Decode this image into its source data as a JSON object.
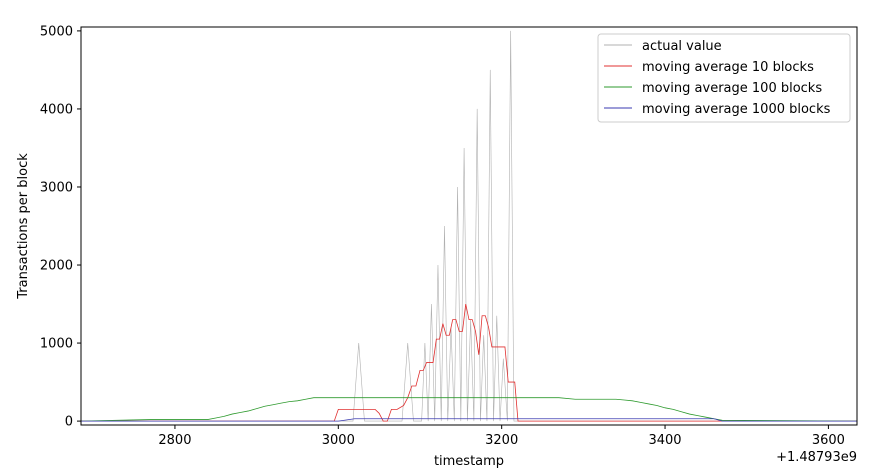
{
  "chart_data": {
    "type": "line",
    "title": "",
    "xlabel": "timestamp",
    "ylabel": "Transactions per block",
    "x_offset_label": "+1.48793e9",
    "xlim": [
      2685,
      3635
    ],
    "ylim": [
      -50,
      5050
    ],
    "x_ticks": [
      2800,
      3000,
      3200,
      3400,
      3600
    ],
    "y_ticks": [
      0,
      1000,
      2000,
      3000,
      4000,
      5000
    ],
    "grid": false,
    "legend_position": "top-right",
    "series": [
      {
        "name": "actual value",
        "color": "#b0b0b0",
        "x": [
          2685,
          3018,
          3025,
          3032,
          3078,
          3085,
          3092,
          3102,
          3106,
          3110,
          3114,
          3118,
          3122,
          3126,
          3130,
          3134,
          3138,
          3142,
          3146,
          3150,
          3154,
          3158,
          3162,
          3166,
          3170,
          3174,
          3178,
          3182,
          3186,
          3190,
          3194,
          3198,
          3202,
          3207,
          3211,
          3215,
          3219,
          3225,
          3635
        ],
        "y": [
          0,
          0,
          1000,
          0,
          0,
          1000,
          0,
          0,
          1000,
          0,
          1500,
          0,
          2000,
          0,
          2500,
          0,
          1200,
          0,
          3000,
          0,
          3500,
          0,
          1300,
          0,
          4000,
          0,
          1100,
          0,
          4500,
          0,
          1350,
          0,
          800,
          0,
          5000,
          0,
          0,
          0,
          0
        ]
      },
      {
        "name": "moving average 10 blocks",
        "color": "#e03030",
        "x": [
          2685,
          2995,
          3000,
          3045,
          3050,
          3055,
          3060,
          3065,
          3068,
          3072,
          3080,
          3085,
          3090,
          3095,
          3100,
          3104,
          3108,
          3112,
          3116,
          3120,
          3124,
          3128,
          3132,
          3136,
          3140,
          3144,
          3148,
          3152,
          3156,
          3160,
          3164,
          3168,
          3172,
          3176,
          3180,
          3184,
          3188,
          3192,
          3196,
          3200,
          3204,
          3208,
          3212,
          3216,
          3220,
          3236,
          3240,
          3635
        ],
        "y": [
          0,
          0,
          150,
          150,
          100,
          0,
          0,
          150,
          150,
          150,
          200,
          300,
          450,
          450,
          650,
          650,
          750,
          750,
          750,
          1050,
          1050,
          1250,
          1100,
          1100,
          1300,
          1300,
          1150,
          1150,
          1500,
          1300,
          1300,
          1150,
          850,
          1350,
          1350,
          1200,
          950,
          950,
          950,
          950,
          950,
          500,
          500,
          500,
          0,
          0,
          0,
          0
        ]
      },
      {
        "name": "moving average 100 blocks",
        "color": "#2e9a2e",
        "x": [
          2685,
          2770,
          2840,
          2850,
          2860,
          2870,
          2880,
          2890,
          2900,
          2910,
          2920,
          2930,
          2940,
          2950,
          2960,
          2970,
          3270,
          3290,
          3340,
          3350,
          3360,
          3370,
          3380,
          3390,
          3400,
          3410,
          3420,
          3430,
          3440,
          3450,
          3460,
          3470,
          3635
        ],
        "y": [
          0,
          20,
          20,
          40,
          60,
          90,
          110,
          130,
          160,
          190,
          210,
          230,
          250,
          260,
          280,
          300,
          300,
          280,
          280,
          270,
          260,
          240,
          220,
          200,
          170,
          150,
          120,
          90,
          70,
          50,
          30,
          10,
          0
        ]
      },
      {
        "name": "moving average 1000 blocks",
        "color": "#3a3ab0",
        "x": [
          2685,
          3000,
          3020,
          3440,
          3460,
          3470,
          3635
        ],
        "y": [
          0,
          0,
          30,
          30,
          30,
          0,
          0
        ]
      }
    ]
  }
}
